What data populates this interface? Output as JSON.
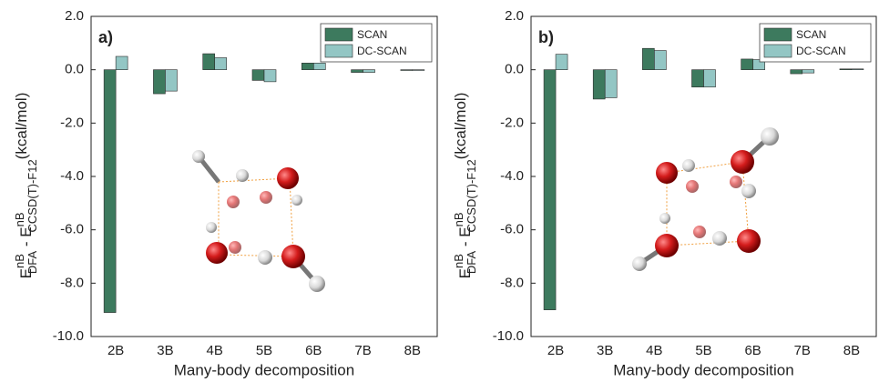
{
  "chart_data": [
    {
      "type": "bar",
      "panel_label": "a)",
      "categories": [
        "2B",
        "3B",
        "4B",
        "5B",
        "6B",
        "7B",
        "8B"
      ],
      "series": [
        {
          "name": "SCAN",
          "color": "#3d7a5e",
          "values": [
            -9.1,
            -0.9,
            0.6,
            -0.4,
            0.25,
            -0.1,
            -0.02
          ]
        },
        {
          "name": "DC-SCAN",
          "color": "#93c6c4",
          "values": [
            0.5,
            -0.8,
            0.45,
            -0.45,
            0.25,
            -0.1,
            -0.02
          ]
        }
      ],
      "xlabel": "Many-body decomposition",
      "ylabel": {
        "e1": "E",
        "sup1": "nB",
        "sub1": "DFA",
        "mid": " - E",
        "sup2": "nB",
        "sub2": "CCSD(T)-F12",
        "unit": "(kcal/mol)"
      },
      "ylim": [
        -10,
        2
      ],
      "yticks": [
        {
          "value": -10,
          "label": "-10.0"
        },
        {
          "value": -8,
          "label": "-8.0"
        },
        {
          "value": -6,
          "label": "-6.0"
        },
        {
          "value": -4,
          "label": "-4.0"
        },
        {
          "value": -2,
          "label": "-2.0"
        },
        {
          "value": 0,
          "label": "0.0"
        },
        {
          "value": 2,
          "label": "2.0"
        }
      ],
      "legend": "upper right"
    },
    {
      "type": "bar",
      "panel_label": "b)",
      "categories": [
        "2B",
        "3B",
        "4B",
        "5B",
        "6B",
        "7B",
        "8B"
      ],
      "series": [
        {
          "name": "SCAN",
          "color": "#3d7a5e",
          "values": [
            -9.0,
            -1.1,
            0.8,
            -0.65,
            0.4,
            -0.15,
            0.03
          ]
        },
        {
          "name": "DC-SCAN",
          "color": "#93c6c4",
          "values": [
            0.58,
            -1.05,
            0.72,
            -0.65,
            0.38,
            -0.12,
            0.03
          ]
        }
      ],
      "xlabel": "Many-body decomposition",
      "ylabel": {
        "e1": "E",
        "sup1": "nB",
        "sub1": "DFA",
        "mid": " - E",
        "sup2": "nB",
        "sub2": "CCSD(T)-F12",
        "unit": "(kcal/mol)"
      },
      "ylim": [
        -10,
        2
      ],
      "yticks": [
        {
          "value": -10,
          "label": "-10.0"
        },
        {
          "value": -8,
          "label": "-8.0"
        },
        {
          "value": -6,
          "label": "-6.0"
        },
        {
          "value": -4,
          "label": "-4.0"
        },
        {
          "value": -2,
          "label": "-2.0"
        },
        {
          "value": 0,
          "label": "0.0"
        },
        {
          "value": 2,
          "label": "2.0"
        }
      ],
      "legend": "upper right"
    }
  ]
}
